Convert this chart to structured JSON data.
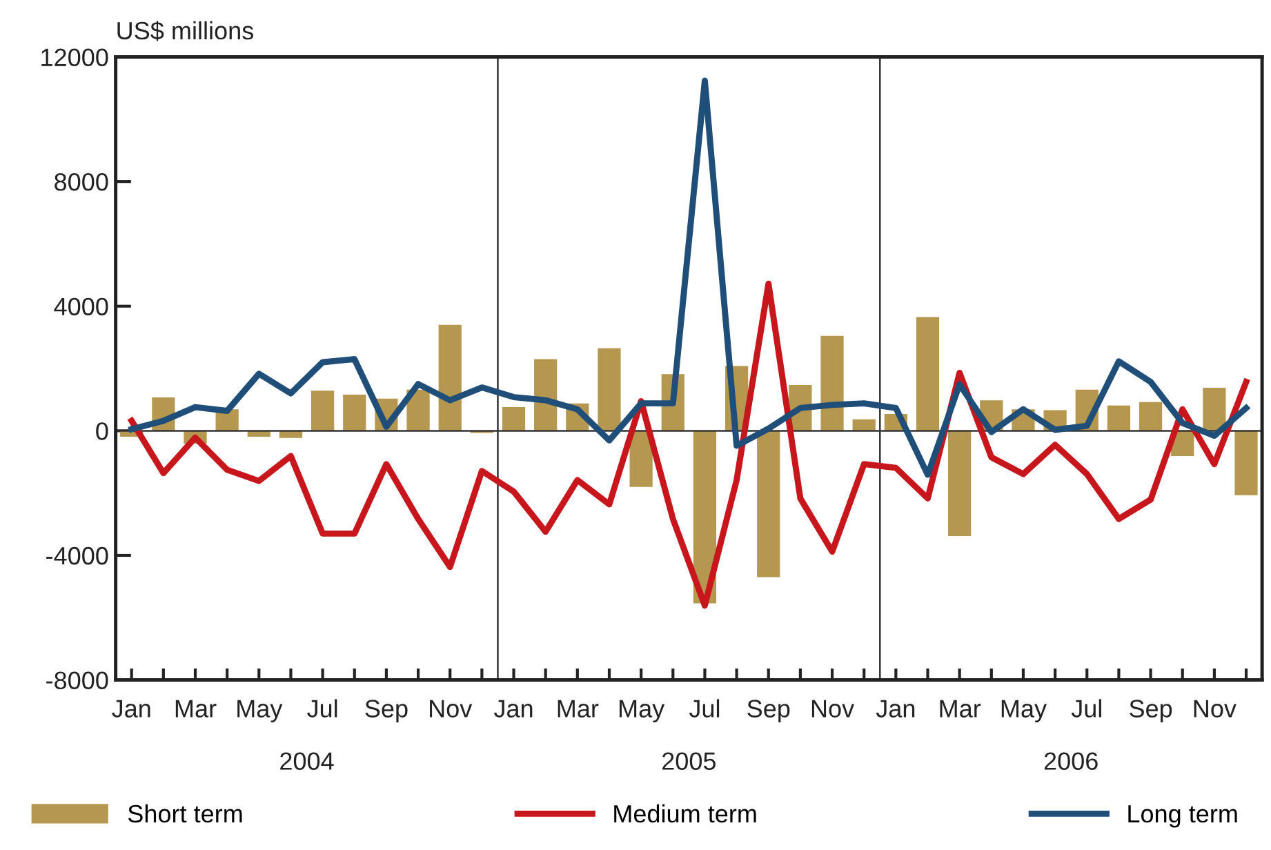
{
  "chart_data": {
    "type": "bar",
    "ylabel": "US$ millions",
    "categories": [
      "Jan",
      null,
      "Mar",
      null,
      "May",
      null,
      "Jul",
      null,
      "Sep",
      null,
      "Nov",
      null,
      "Jan",
      null,
      "Mar",
      null,
      "May",
      null,
      "Jul",
      null,
      "Sep",
      null,
      "Nov",
      null,
      "Jan",
      null,
      "Mar",
      null,
      "May",
      null,
      "Jul",
      null,
      "Sep",
      null,
      "Nov",
      null
    ],
    "annotations": [
      "2004",
      "2005",
      "2006"
    ],
    "series": [
      {
        "name": "Short term",
        "color": "#b5974f",
        "values": [
          -190,
          1070,
          -410,
          690,
          -190,
          -230,
          1290,
          1160,
          1030,
          1320,
          3400,
          -70,
          760,
          2300,
          880,
          2650,
          -1800,
          1820,
          -5540,
          2080,
          -4700,
          1470,
          3050,
          370,
          540,
          3650,
          -3380,
          980,
          690,
          660,
          1320,
          810,
          920,
          -810,
          1380,
          -2070
        ]
      },
      {
        "name": "Medium term",
        "type": "line",
        "color": "#c8161d",
        "values": [
          320,
          -1360,
          -220,
          -1250,
          -1610,
          -810,
          -3300,
          -3300,
          -1070,
          -2830,
          -4370,
          -1290,
          -1950,
          -3240,
          -1580,
          -2360,
          950,
          -2830,
          -5610,
          -1580,
          4720,
          -2170,
          -3880,
          -1070,
          -1190,
          -2170,
          1860,
          -850,
          -1390,
          -450,
          -1390,
          -2830,
          -2210,
          690,
          -1070,
          1570
        ]
      },
      {
        "name": "Long term",
        "type": "line",
        "color": "#1f4e79",
        "values": [
          50,
          320,
          760,
          640,
          1830,
          1200,
          2200,
          2300,
          130,
          1500,
          980,
          1390,
          1080,
          980,
          690,
          -310,
          880,
          880,
          11240,
          -480,
          70,
          730,
          830,
          880,
          730,
          -1410,
          1490,
          -40,
          690,
          30,
          160,
          2230,
          1570,
          250,
          -160,
          730
        ]
      }
    ],
    "ylim": [
      -8000,
      12000
    ],
    "yticks": [
      -8000,
      -4000,
      0,
      4000,
      8000,
      12000
    ],
    "ref_lines": [
      {
        "axis": "y",
        "value": 0,
        "color": "#333333"
      }
    ],
    "grid": false,
    "legend": "bottom",
    "marker": "none",
    "line_style": "solid"
  }
}
